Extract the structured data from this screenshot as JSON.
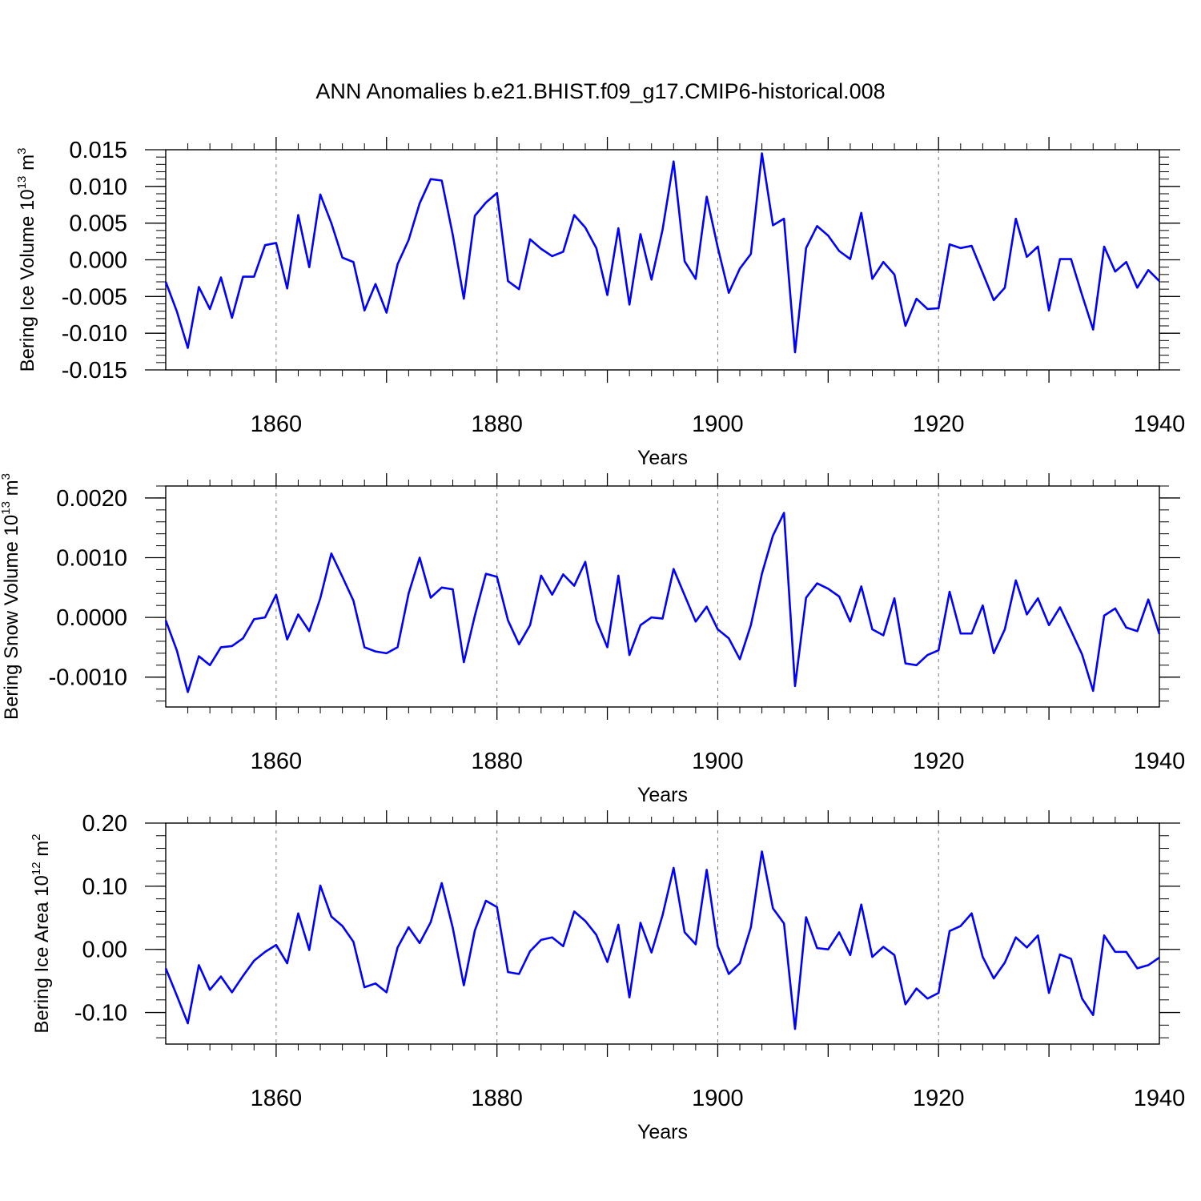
{
  "title": "ANN Anomalies b.e21.BHIST.f09_g17.CMIP6-historical.008",
  "colors": {
    "line": "#0000ff",
    "grid": "#777777",
    "axis": "#000000"
  },
  "chart_data": [
    {
      "type": "line",
      "title": "",
      "ylabel_main": "Bering Ice Volume 10",
      "ylabel_exp": "13",
      "ylabel_unit": " m",
      "ylabel_unit_exp": "3",
      "xlabel": "Years",
      "xlim": [
        1850,
        1940
      ],
      "ylim": [
        -0.015,
        0.015
      ],
      "yticks": [
        -0.015,
        -0.01,
        -0.005,
        0.0,
        0.005,
        0.01,
        0.015
      ],
      "ytick_labels": [
        "-0.015",
        "-0.010",
        "-0.005",
        "0.000",
        "0.005",
        "0.010",
        "0.015"
      ],
      "yminor_step": 0.001,
      "xticks": [
        1860,
        1880,
        1900,
        1920,
        1940
      ],
      "xtick_labels": [
        "1860",
        "1880",
        "1900",
        "1920",
        "1940"
      ],
      "grid_x": [
        1860,
        1880,
        1900,
        1920
      ],
      "series": [
        {
          "name": "Bering Ice Volume",
          "x_start": 1850,
          "values": [
            -0.003,
            -0.007,
            -0.012,
            -0.0037,
            -0.0067,
            -0.0024,
            -0.0079,
            -0.0023,
            -0.0023,
            0.002,
            0.0023,
            -0.0039,
            0.0061,
            -0.001,
            0.0089,
            0.005,
            0.0003,
            -0.0003,
            -0.0069,
            -0.0033,
            -0.0072,
            -0.0006,
            0.0027,
            0.0077,
            0.011,
            0.0108,
            0.0034,
            -0.0053,
            0.006,
            0.0078,
            0.0091,
            -0.0029,
            -0.004,
            0.0028,
            0.0015,
            0.0005,
            0.0011,
            0.0061,
            0.0044,
            0.0016,
            -0.0048,
            0.0043,
            -0.0061,
            0.0035,
            -0.0027,
            0.0041,
            0.0134,
            -0.0002,
            -0.0026,
            0.0086,
            0.0017,
            -0.0045,
            -0.0012,
            0.0008,
            0.0145,
            0.0047,
            0.0056,
            -0.0126,
            0.0016,
            0.0046,
            0.0033,
            0.0012,
            0.0001,
            0.0064,
            -0.0026,
            -0.0003,
            -0.002,
            -0.009,
            -0.0053,
            -0.0067,
            -0.0066,
            0.0021,
            0.0016,
            0.0019,
            -0.0018,
            -0.0055,
            -0.0038,
            0.0056,
            0.0004,
            0.0018,
            -0.0069,
            0.0001,
            0.0001,
            -0.0048,
            -0.0095,
            0.0018,
            -0.0016,
            -0.0003,
            -0.0038,
            -0.0014,
            -0.0029
          ]
        }
      ]
    },
    {
      "type": "line",
      "title": "",
      "ylabel_main": "Bering Snow Volume 10",
      "ylabel_exp": "13",
      "ylabel_unit": " m",
      "ylabel_unit_exp": "3",
      "xlabel": "Years",
      "xlim": [
        1850,
        1940
      ],
      "ylim": [
        -0.0015,
        0.0022
      ],
      "yticks": [
        -0.001,
        0.0,
        0.001,
        0.002
      ],
      "ytick_labels": [
        "-0.0010",
        "0.0000",
        "0.0010",
        "0.0020"
      ],
      "yminor_step": 0.0002,
      "xticks": [
        1860,
        1880,
        1900,
        1920,
        1940
      ],
      "xtick_labels": [
        "1860",
        "1880",
        "1900",
        "1920",
        "1940"
      ],
      "grid_x": [
        1860,
        1880,
        1900,
        1920
      ],
      "series": [
        {
          "name": "Bering Snow Volume",
          "x_start": 1850,
          "values": [
            -5e-05,
            -0.00055,
            -0.00125,
            -0.00065,
            -0.0008,
            -0.0005,
            -0.00048,
            -0.00035,
            -3e-05,
            0.0,
            0.00038,
            -0.00037,
            5e-05,
            -0.00023,
            0.00032,
            0.00107,
            0.00068,
            0.00028,
            -0.0005,
            -0.00057,
            -0.0006,
            -0.0005,
            0.0004,
            0.001,
            0.00033,
            0.0005,
            0.00047,
            -0.00075,
            3e-05,
            0.00073,
            0.00068,
            -5e-05,
            -0.00045,
            -0.00013,
            0.0007,
            0.00038,
            0.00072,
            0.00053,
            0.00093,
            -5e-05,
            -0.0005,
            0.0007,
            -0.00063,
            -0.00013,
            0.0,
            -2e-05,
            0.00081,
            0.00037,
            -7e-05,
            0.00018,
            -0.0002,
            -0.00035,
            -0.0007,
            -0.00013,
            0.00073,
            0.00137,
            0.00175,
            -0.00115,
            0.00033,
            0.00057,
            0.00048,
            0.00035,
            -7e-05,
            0.00052,
            -0.0002,
            -0.0003,
            0.00032,
            -0.00077,
            -0.0008,
            -0.00063,
            -0.00055,
            0.00043,
            -0.00027,
            -0.00027,
            0.0002,
            -0.0006,
            -0.0002,
            0.00062,
            5e-05,
            0.00032,
            -0.00013,
            0.00017,
            -0.00022,
            -0.00062,
            -0.00123,
            3e-05,
            0.00015,
            -0.00017,
            -0.00023,
            0.0003,
            -0.00028
          ]
        }
      ]
    },
    {
      "type": "line",
      "title": "",
      "ylabel_main": "Bering Ice Area 10",
      "ylabel_exp": "12",
      "ylabel_unit": " m",
      "ylabel_unit_exp": "2",
      "xlabel": "Years",
      "xlim": [
        1850,
        1940
      ],
      "ylim": [
        -0.15,
        0.2
      ],
      "yticks": [
        -0.1,
        0.0,
        0.1,
        0.2
      ],
      "ytick_labels": [
        "-0.10",
        "0.00",
        "0.10",
        "0.20"
      ],
      "yminor_step": 0.02,
      "xticks": [
        1860,
        1880,
        1900,
        1920,
        1940
      ],
      "xtick_labels": [
        "1860",
        "1880",
        "1900",
        "1920",
        "1940"
      ],
      "grid_x": [
        1860,
        1880,
        1900,
        1920
      ],
      "series": [
        {
          "name": "Bering Ice Area",
          "x_start": 1850,
          "values": [
            -0.03,
            -0.073,
            -0.117,
            -0.025,
            -0.064,
            -0.043,
            -0.068,
            -0.042,
            -0.018,
            -0.004,
            0.007,
            -0.022,
            0.057,
            -0.001,
            0.101,
            0.052,
            0.037,
            0.012,
            -0.06,
            -0.054,
            -0.068,
            0.003,
            0.035,
            0.01,
            0.043,
            0.105,
            0.034,
            -0.057,
            0.03,
            0.077,
            0.067,
            -0.036,
            -0.039,
            -0.003,
            0.015,
            0.019,
            0.005,
            0.06,
            0.045,
            0.023,
            -0.02,
            0.039,
            -0.076,
            0.042,
            -0.005,
            0.054,
            0.129,
            0.027,
            0.008,
            0.126,
            0.005,
            -0.039,
            -0.022,
            0.035,
            0.155,
            0.065,
            0.041,
            -0.126,
            0.051,
            0.002,
            0.0,
            0.027,
            -0.009,
            0.071,
            -0.012,
            0.004,
            -0.009,
            -0.087,
            -0.062,
            -0.078,
            -0.069,
            0.029,
            0.037,
            0.057,
            -0.012,
            -0.046,
            -0.021,
            0.019,
            0.003,
            0.022,
            -0.069,
            -0.008,
            -0.015,
            -0.078,
            -0.104,
            0.022,
            -0.004,
            -0.004,
            -0.03,
            -0.025,
            -0.013
          ]
        }
      ]
    }
  ]
}
